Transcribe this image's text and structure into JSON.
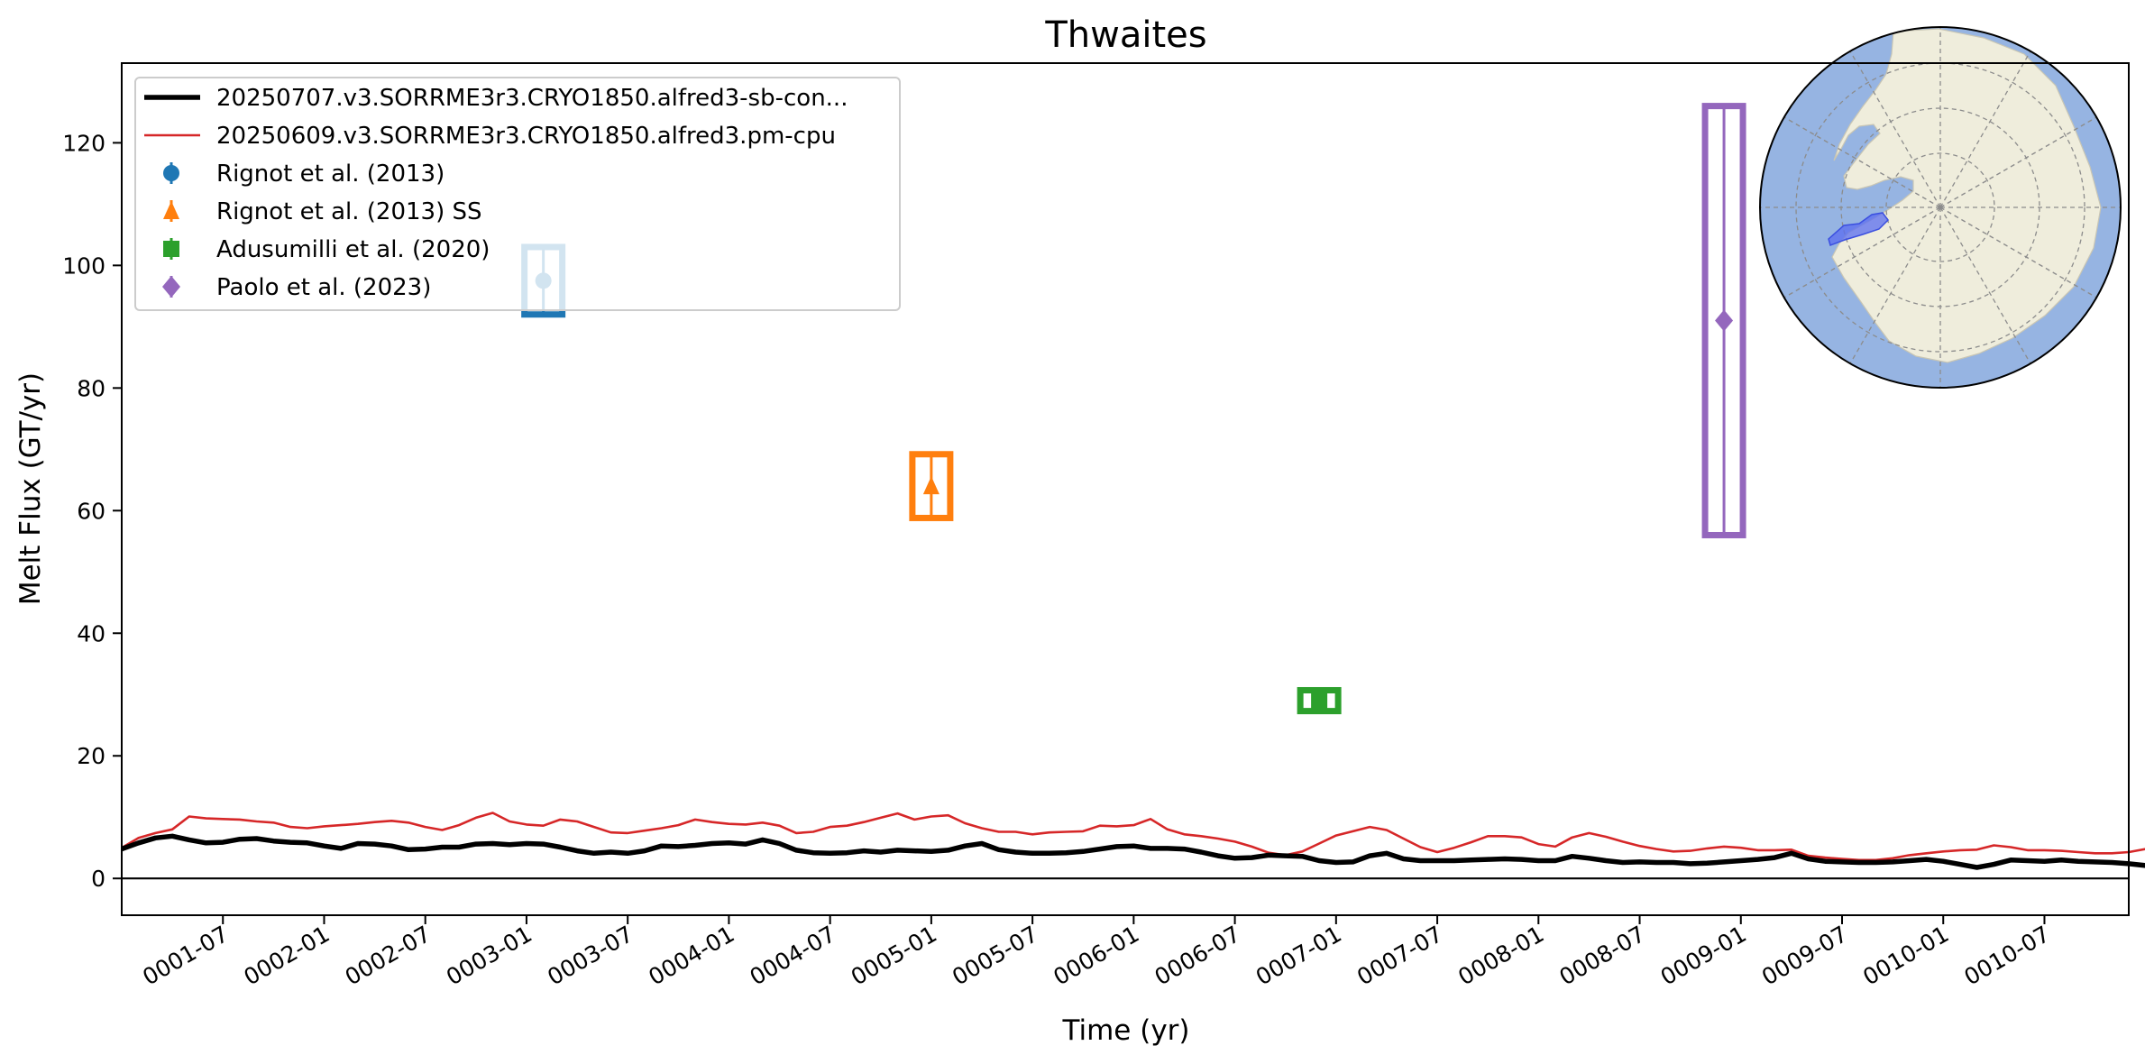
{
  "chart_data": {
    "type": "line",
    "title": "Thwaites",
    "xlabel": "Time (yr)",
    "ylabel": "Melt Flux (GT/yr)",
    "xlim": [
      "0001-01",
      "0010-12"
    ],
    "ylim": [
      -6,
      133
    ],
    "grid": false,
    "legend_position": "top-left",
    "x_ticks": [
      "0001-07",
      "0002-01",
      "0002-07",
      "0003-01",
      "0003-07",
      "0004-01",
      "0004-07",
      "0005-01",
      "0005-07",
      "0006-01",
      "0006-07",
      "0007-01",
      "0007-07",
      "0008-01",
      "0008-07",
      "0009-01",
      "0009-07",
      "0010-01",
      "0010-07"
    ],
    "y_ticks": [
      "0",
      "20",
      "40",
      "60",
      "80",
      "100",
      "120"
    ],
    "reference_line": 0,
    "series": [
      {
        "name": "20250707.v3.SORRME3r3.CRYO1850.alfred3-sb-con...",
        "color": "#000000",
        "x_start": "0001-01",
        "step": "month",
        "values": [
          4.8,
          5.8,
          6.6,
          6.9,
          6.3,
          5.8,
          5.9,
          6.4,
          6.5,
          6.1,
          5.9,
          5.8,
          5.3,
          4.9,
          5.7,
          5.6,
          5.3,
          4.7,
          4.8,
          5.1,
          5.1,
          5.6,
          5.7,
          5.5,
          5.7,
          5.6,
          5.1,
          4.5,
          4.1,
          4.3,
          4.1,
          4.5,
          5.3,
          5.2,
          5.4,
          5.7,
          5.8,
          5.6,
          6.3,
          5.7,
          4.6,
          4.2,
          4.1,
          4.2,
          4.5,
          4.3,
          4.6,
          4.5,
          4.4,
          4.6,
          5.3,
          5.7,
          4.7,
          4.3,
          4.1,
          4.1,
          4.2,
          4.4,
          4.8,
          5.2,
          5.3,
          4.9,
          4.9,
          4.8,
          4.3,
          3.7,
          3.3,
          3.4,
          3.8,
          3.7,
          3.6,
          2.9,
          2.6,
          2.7,
          3.7,
          4.1,
          3.2,
          2.9,
          2.9,
          2.9,
          3.0,
          3.1,
          3.2,
          3.1,
          2.9,
          2.9,
          3.6,
          3.3,
          2.9,
          2.6,
          2.7,
          2.6,
          2.6,
          2.4,
          2.5,
          2.7,
          2.9,
          3.1,
          3.4,
          4.1,
          3.2,
          2.8,
          2.7,
          2.6,
          2.6,
          2.7,
          2.9,
          3.1,
          2.8,
          2.3,
          1.8,
          2.3,
          3.0,
          2.9,
          2.8,
          3.0,
          2.8,
          2.7,
          2.6,
          2.4,
          2.1,
          2.2,
          2.3,
          2.6
        ]
      },
      {
        "name": "20250609.v3.SORRME3r3.CRYO1850.alfred3.pm-cpu",
        "color": "#d62728",
        "x_start": "0001-01",
        "step": "month",
        "values": [
          5.0,
          6.6,
          7.4,
          8.0,
          10.1,
          9.8,
          9.7,
          9.6,
          9.3,
          9.1,
          8.4,
          8.2,
          8.5,
          8.7,
          8.9,
          9.2,
          9.4,
          9.1,
          8.4,
          7.9,
          8.7,
          9.9,
          10.7,
          9.3,
          8.8,
          8.6,
          9.6,
          9.3,
          8.4,
          7.5,
          7.4,
          7.8,
          8.2,
          8.7,
          9.6,
          9.2,
          8.9,
          8.8,
          9.1,
          8.6,
          7.4,
          7.6,
          8.4,
          8.6,
          9.2,
          9.9,
          10.6,
          9.6,
          10.1,
          10.3,
          9.0,
          8.2,
          7.6,
          7.6,
          7.2,
          7.5,
          7.6,
          7.7,
          8.6,
          8.5,
          8.7,
          9.7,
          8.0,
          7.2,
          6.9,
          6.5,
          6.0,
          5.2,
          4.2,
          3.8,
          4.4,
          5.7,
          7.0,
          7.7,
          8.4,
          7.9,
          6.5,
          5.1,
          4.3,
          5.0,
          5.9,
          6.9,
          6.9,
          6.7,
          5.6,
          5.2,
          6.7,
          7.4,
          6.8,
          6.0,
          5.3,
          4.8,
          4.4,
          4.5,
          4.9,
          5.2,
          5.0,
          4.6,
          4.6,
          4.7,
          3.7,
          3.4,
          3.2,
          3.0,
          3.0,
          3.3,
          3.8,
          4.1,
          4.4,
          4.6,
          4.7,
          5.4,
          5.1,
          4.6,
          4.6,
          4.5,
          4.3,
          4.1,
          4.1,
          4.3,
          4.8,
          5.5,
          5.8,
          6.0
        ]
      }
    ],
    "observations": [
      {
        "name": "Rignot et al. (2013)",
        "color": "#1f77b4",
        "marker": "circle",
        "x": "0003-02",
        "value": 97.5,
        "low": 92,
        "high": 103
      },
      {
        "name": "Rignot et al. (2013) SS",
        "color": "#ff7f0e",
        "marker": "triangle",
        "x": "0005-01",
        "value": 64,
        "low": 58.8,
        "high": 69.2
      },
      {
        "name": "Adusumilli et al. (2020)",
        "color": "#2ca02c",
        "marker": "square",
        "x": "0006-12",
        "value": 29,
        "low": 27.3,
        "high": 30.7
      },
      {
        "name": "Paolo et al. (2023)",
        "color": "#9467bd",
        "marker": "diamond",
        "x": "0008-12",
        "value": 91,
        "low": 56,
        "high": 126
      }
    ],
    "inset_map": {
      "projection": "south-polar-stereographic",
      "ocean_color": "#96b4e2",
      "land_color": "#efeddc",
      "highlight_region": "Thwaites",
      "highlight_color": "#5a6cf0"
    }
  }
}
